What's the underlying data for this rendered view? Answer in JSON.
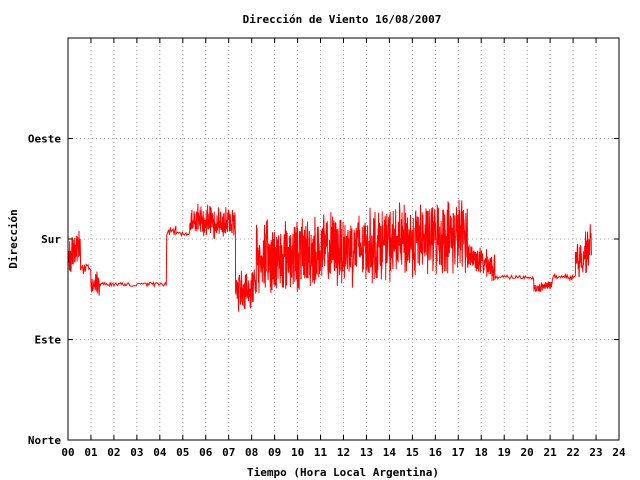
{
  "chart_data": {
    "type": "line",
    "title": "Dirección de Viento 16/08/2007",
    "xlabel": "Tiempo (Hora Local Argentina)",
    "ylabel": "Dirección",
    "xlim": [
      0,
      24
    ],
    "ylim": [
      0,
      4
    ],
    "x_ticks": [
      "00",
      "01",
      "02",
      "03",
      "04",
      "05",
      "06",
      "07",
      "08",
      "09",
      "10",
      "11",
      "12",
      "13",
      "14",
      "15",
      "16",
      "17",
      "18",
      "19",
      "20",
      "21",
      "22",
      "23",
      "24"
    ],
    "y_ticks": [
      {
        "value": 0,
        "label": "Norte"
      },
      {
        "value": 1,
        "label": "Este"
      },
      {
        "value": 2,
        "label": "Sur"
      },
      {
        "value": 3,
        "label": "Oeste"
      }
    ],
    "grid": true,
    "series_color": "#ff0000",
    "segments": [
      {
        "x0": 0.0,
        "x1": 0.55,
        "y0": 1.85,
        "y1": 1.95,
        "noise": 0.22,
        "style": "jitter"
      },
      {
        "x0": 0.55,
        "x1": 1.0,
        "y0": 1.7,
        "y1": 1.7,
        "noise": 0.05,
        "style": "flat"
      },
      {
        "x0": 1.0,
        "x1": 1.4,
        "y0": 1.55,
        "y1": 1.55,
        "noise": 0.14,
        "style": "jitter"
      },
      {
        "x0": 1.4,
        "x1": 4.3,
        "y0": 1.55,
        "y1": 1.55,
        "noise": 0.02,
        "style": "flat"
      },
      {
        "x0": 4.3,
        "x1": 4.7,
        "y0": 2.05,
        "y1": 2.1,
        "noise": 0.05,
        "style": "flat"
      },
      {
        "x0": 4.7,
        "x1": 5.3,
        "y0": 2.05,
        "y1": 2.05,
        "noise": 0.02,
        "style": "flat"
      },
      {
        "x0": 5.3,
        "x1": 7.3,
        "y0": 2.2,
        "y1": 2.15,
        "noise": 0.18,
        "style": "jitter"
      },
      {
        "x0": 7.3,
        "x1": 8.2,
        "y0": 1.5,
        "y1": 1.5,
        "noise": 0.25,
        "style": "jitter"
      },
      {
        "x0": 8.2,
        "x1": 17.4,
        "y0": 1.8,
        "y1": 2.05,
        "noise": 0.42,
        "style": "jitter"
      },
      {
        "x0": 17.4,
        "x1": 18.6,
        "y0": 1.85,
        "y1": 1.7,
        "noise": 0.16,
        "style": "jitter"
      },
      {
        "x0": 18.6,
        "x1": 20.3,
        "y0": 1.62,
        "y1": 1.62,
        "noise": 0.02,
        "style": "flat"
      },
      {
        "x0": 20.3,
        "x1": 21.1,
        "y0": 1.5,
        "y1": 1.55,
        "noise": 0.05,
        "style": "jitter"
      },
      {
        "x0": 21.1,
        "x1": 22.1,
        "y0": 1.62,
        "y1": 1.62,
        "noise": 0.03,
        "style": "flat"
      },
      {
        "x0": 22.1,
        "x1": 22.8,
        "y0": 1.75,
        "y1": 1.95,
        "noise": 0.25,
        "style": "jitter"
      }
    ]
  }
}
